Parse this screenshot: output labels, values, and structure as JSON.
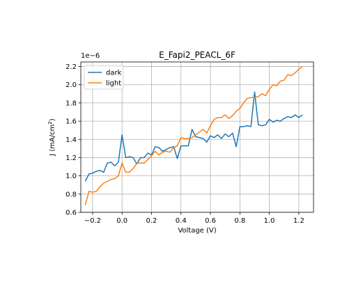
{
  "chart_data": {
    "type": "line",
    "title": "E_Fapi2_PEACL_6F",
    "xlabel": "Voltage (V)",
    "ylabel": "J (mA/cm²)",
    "y_offset_text": "1e−6",
    "xlim": [
      -0.28,
      1.3
    ],
    "ylim": [
      6e-07,
      2.25e-06
    ],
    "xticks": [
      -0.2,
      0.0,
      0.2,
      0.4,
      0.6,
      0.8,
      1.0,
      1.2
    ],
    "xtick_labels": [
      "−0.2",
      "0.0",
      "0.2",
      "0.4",
      "0.6",
      "0.8",
      "1.0",
      "1.2"
    ],
    "yticks": [
      6e-07,
      8e-07,
      1e-06,
      1.2e-06,
      1.4e-06,
      1.6e-06,
      1.8e-06,
      2e-06,
      2.2e-06
    ],
    "ytick_labels": [
      "0.6",
      "0.8",
      "1.0",
      "1.2",
      "1.4",
      "1.6",
      "1.8",
      "2.0",
      "2.2"
    ],
    "grid": true,
    "legend_position": "top-left",
    "x": [
      -0.25,
      -0.225,
      -0.2,
      -0.175,
      -0.15,
      -0.125,
      -0.1,
      -0.075,
      -0.05,
      -0.025,
      0.0,
      0.025,
      0.05,
      0.075,
      0.1,
      0.125,
      0.15,
      0.175,
      0.2,
      0.225,
      0.25,
      0.275,
      0.3,
      0.325,
      0.35,
      0.375,
      0.4,
      0.425,
      0.45,
      0.475,
      0.5,
      0.525,
      0.55,
      0.575,
      0.6,
      0.625,
      0.65,
      0.675,
      0.7,
      0.725,
      0.75,
      0.775,
      0.8,
      0.825,
      0.85,
      0.875,
      0.9,
      0.925,
      0.95,
      0.975,
      1.0,
      1.025,
      1.05,
      1.075,
      1.1,
      1.125,
      1.15,
      1.175,
      1.2,
      1.225
    ],
    "series": [
      {
        "name": "dark",
        "color": "#1f77b4",
        "values": [
          9.4e-07,
          1.02e-06,
          1.03e-06,
          1.05e-06,
          1.06e-06,
          1.04e-06,
          1.14e-06,
          1.15e-06,
          1.11e-06,
          1.15e-06,
          1.45e-06,
          1.2e-06,
          1.21e-06,
          1.2e-06,
          1.13e-06,
          1.2e-06,
          1.2e-06,
          1.25e-06,
          1.23e-06,
          1.32e-06,
          1.31e-06,
          1.27e-06,
          1.29e-06,
          1.31e-06,
          1.32e-06,
          1.19e-06,
          1.33e-06,
          1.33e-06,
          1.33e-06,
          1.51e-06,
          1.43e-06,
          1.42e-06,
          1.41e-06,
          1.37e-06,
          1.44e-06,
          1.42e-06,
          1.45e-06,
          1.41e-06,
          1.46e-06,
          1.43e-06,
          1.47e-06,
          1.32e-06,
          1.54e-06,
          1.54e-06,
          1.55e-06,
          1.54e-06,
          1.92e-06,
          1.56e-06,
          1.55e-06,
          1.56e-06,
          1.62e-06,
          1.59e-06,
          1.61e-06,
          1.6e-06,
          1.63e-06,
          1.65e-06,
          1.64e-06,
          1.67e-06,
          1.64e-06,
          1.67e-06
        ]
      },
      {
        "name": "light",
        "color": "#ff7f0e",
        "values": [
          6.8e-07,
          8.3e-07,
          8.2e-07,
          8.3e-07,
          8.8e-07,
          9.2e-07,
          9.4e-07,
          9.6e-07,
          9.7e-07,
          1e-06,
          1.14e-06,
          1.04e-06,
          1.04e-06,
          1.08e-06,
          1.14e-06,
          1.14e-06,
          1.14e-06,
          1.18e-06,
          1.22e-06,
          1.27e-06,
          1.23e-06,
          1.26e-06,
          1.27e-06,
          1.26e-06,
          1.31e-06,
          1.33e-06,
          1.42e-06,
          1.41e-06,
          1.41e-06,
          1.42e-06,
          1.45e-06,
          1.48e-06,
          1.51e-06,
          1.47e-06,
          1.55e-06,
          1.62e-06,
          1.64e-06,
          1.64e-06,
          1.67e-06,
          1.63e-06,
          1.66e-06,
          1.71e-06,
          1.74e-06,
          1.8e-06,
          1.85e-06,
          1.86e-06,
          1.86e-06,
          1.87e-06,
          1.9e-06,
          1.88e-06,
          1.95e-06,
          2e-06,
          1.99e-06,
          2.04e-06,
          2.05e-06,
          2.11e-06,
          2.1e-06,
          2.13e-06,
          2.17e-06,
          2.2e-06
        ]
      }
    ]
  }
}
